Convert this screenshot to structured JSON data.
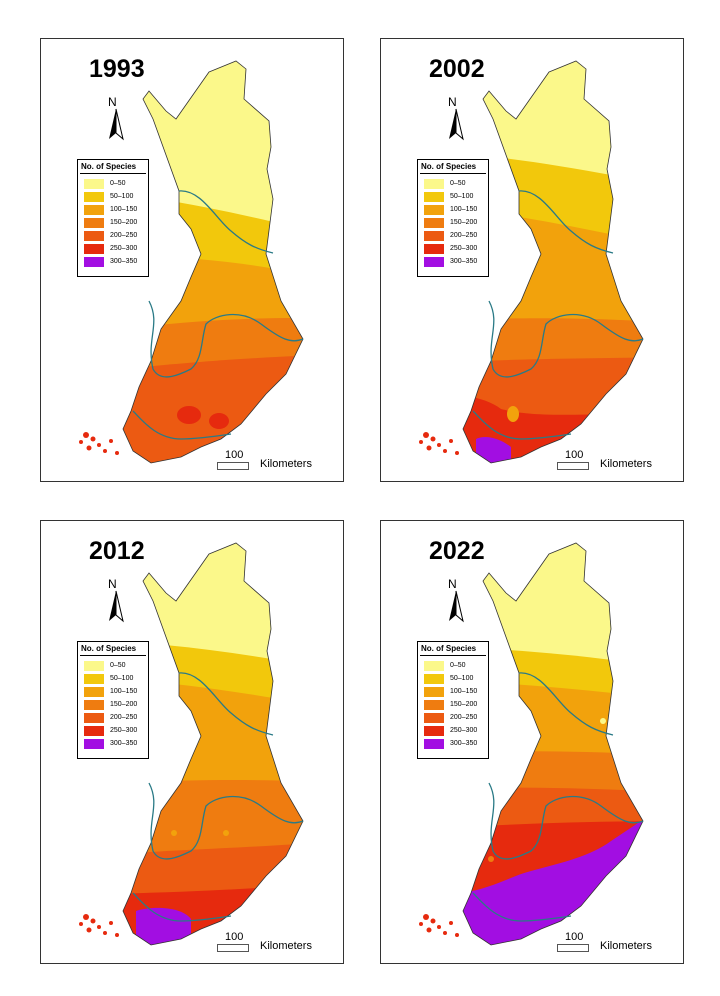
{
  "maps": [
    {
      "year": "1993"
    },
    {
      "year": "2002"
    },
    {
      "year": "2012"
    },
    {
      "year": "2022"
    }
  ],
  "north_label": "N",
  "legend": {
    "title": "No. of Species",
    "classes": [
      {
        "label": "0–50",
        "color": "#fbf88a"
      },
      {
        "label": "50–100",
        "color": "#f2c80c"
      },
      {
        "label": "100–150",
        "color": "#f2a20c"
      },
      {
        "label": "150–200",
        "color": "#ef7c10"
      },
      {
        "label": "200–250",
        "color": "#ec5a12"
      },
      {
        "label": "250–300",
        "color": "#e62a0e"
      },
      {
        "label": "300–350",
        "color": "#a20ee2"
      }
    ]
  },
  "scale": {
    "value": "100",
    "unit": "Kilometers"
  },
  "colors": {
    "boundary": "#2a7a86",
    "outline": "#333333"
  }
}
